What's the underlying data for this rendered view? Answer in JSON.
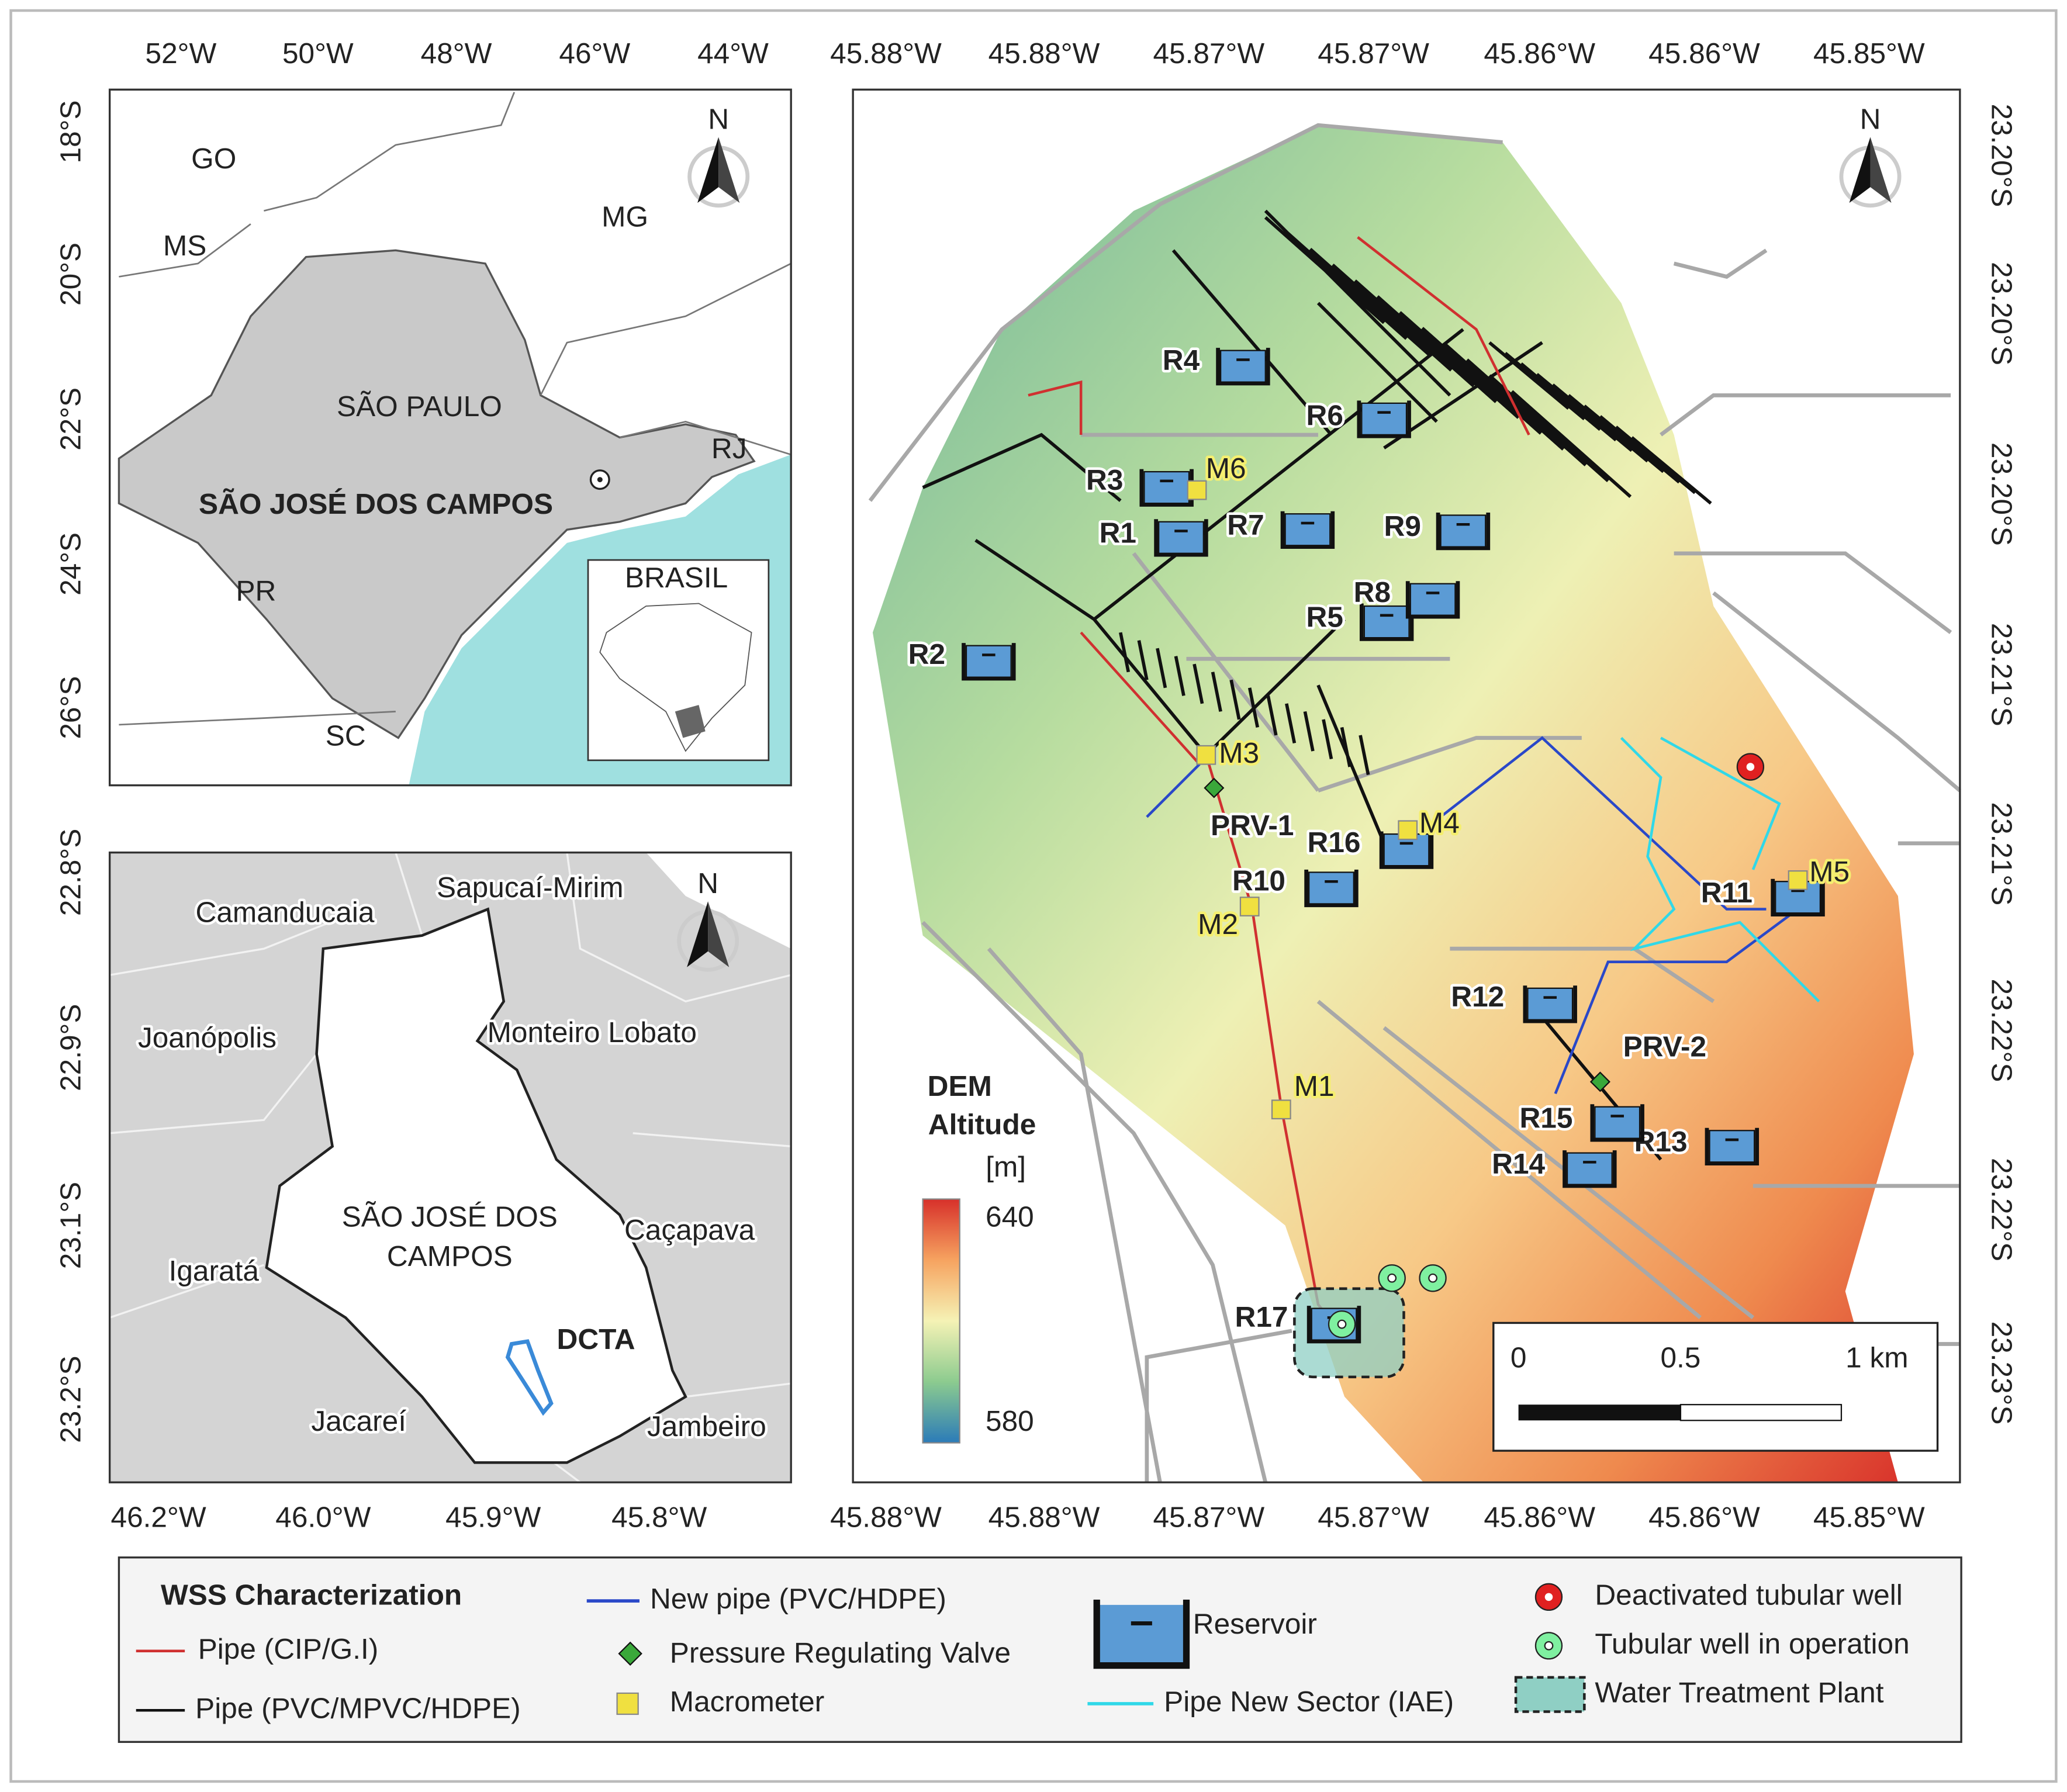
{
  "state_map": {
    "top_labels": [
      "52°W",
      "50°W",
      "48°W",
      "46°W",
      "44°W"
    ],
    "left_labels": [
      "18°S",
      "20°S",
      "22°S",
      "24°S",
      "26°S"
    ],
    "places": [
      "GO",
      "MS",
      "MG",
      "SÃO PAULO",
      "RJ",
      "SÃO JOSÉ DOS CAMPOS",
      "PR",
      "SC"
    ],
    "inset_title": "BRASIL",
    "north": "N"
  },
  "municipality_map": {
    "bottom_labels": [
      "46.2°W",
      "46.0°W",
      "45.9°W",
      "45.8°W"
    ],
    "left_labels": [
      "22.8°S",
      "22.9°S",
      "23.1°S",
      "23.2°S"
    ],
    "places": [
      "Camanducaia",
      "Sapucaí-Mirim",
      "Joanópolis",
      "Monteiro Lobato",
      "SÃO JOSÉ DOS",
      "CAMPOS",
      "Caçapava",
      "Igaratá",
      "DCTA",
      "Jacareí",
      "Jambeiro"
    ],
    "north": "N"
  },
  "network_map": {
    "top_labels": [
      "45.88°W",
      "45.88°W",
      "45.87°W",
      "45.87°W",
      "45.86°W",
      "45.86°W",
      "45.85°W"
    ],
    "bottom_labels": [
      "45.88°W",
      "45.88°W",
      "45.87°W",
      "45.87°W",
      "45.86°W",
      "45.86°W",
      "45.85°W"
    ],
    "right_labels": [
      "23.20°S",
      "23.20°S",
      "23.20°S",
      "23.21°S",
      "23.21°S",
      "23.22°S",
      "23.22°S",
      "23.23°S"
    ],
    "reservoirs": [
      "R1",
      "R2",
      "R3",
      "R4",
      "R5",
      "R6",
      "R7",
      "R8",
      "R9",
      "R10",
      "R11",
      "R12",
      "R13",
      "R14",
      "R15",
      "R16",
      "R17"
    ],
    "macrometers": [
      "M1",
      "M2",
      "M3",
      "M4",
      "M5",
      "M6"
    ],
    "valves": [
      "PRV-1",
      "PRV-2"
    ],
    "dem": {
      "title_1": "DEM",
      "title_2": "Altitude",
      "unit": "[m]",
      "max_label": "640",
      "min_label": "580"
    },
    "scale_bar": [
      "0",
      "0.5",
      "1 km"
    ],
    "north": "N"
  },
  "legend": {
    "title": "WSS Characterization",
    "items": [
      "Pipe (CIP/G.I)",
      "Pipe (PVC/MPVC/HDPE)",
      "New pipe (PVC/HDPE)",
      "Pressure Regulating Valve",
      "Macrometer",
      "Reservoir",
      "Pipe New Sector (IAE)",
      "Deactivated tubular well",
      "Tubular well in operation",
      "Water Treatment Plant"
    ]
  }
}
